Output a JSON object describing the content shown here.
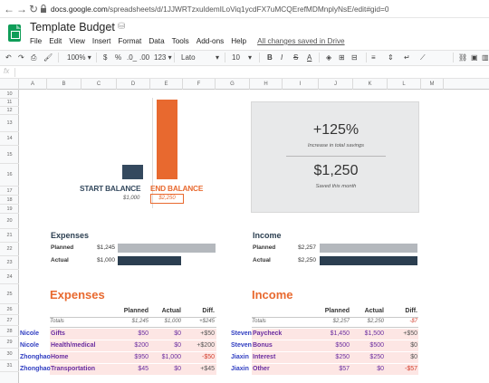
{
  "browser": {
    "url_prefix": "docs.google.com",
    "url_rest": "/spreadsheets/d/1JJWRTzxuldemILoViq1ycdFX7uMCQErefMDMnplyNsE/edit#gid=0"
  },
  "app": {
    "title": "Template Budget",
    "menu": [
      "File",
      "Edit",
      "View",
      "Insert",
      "Format",
      "Data",
      "Tools",
      "Add-ons",
      "Help"
    ],
    "save_status": "All changes saved in Drive"
  },
  "toolbar": {
    "zoom": "100%",
    "currency": "$",
    "percent": "%",
    "dec_less": ".0_",
    "dec_more": ".00",
    "format_more": "123",
    "font": "Lato",
    "font_size": "10",
    "bold": "B",
    "italic": "I",
    "strike": "S",
    "text_color": "A"
  },
  "formula_bar": {
    "label": "fx"
  },
  "columns": [
    "A",
    "B",
    "C",
    "D",
    "E",
    "F",
    "G",
    "H",
    "I",
    "J",
    "K",
    "L",
    "M"
  ],
  "rows": [
    "10",
    "11",
    "12",
    "13",
    "14",
    "15",
    "16",
    "17",
    "18",
    "19",
    "20",
    "21",
    "22",
    "23",
    "24",
    "25",
    "26",
    "27",
    "28",
    "29",
    "30",
    "31"
  ],
  "chart": {
    "start_label": "START BALANCE",
    "end_label": "END BALANCE",
    "start_value": "$1,000",
    "end_value": "$2,250",
    "start_amount": 1000,
    "end_amount": 2250
  },
  "stats": {
    "increase": "+125%",
    "increase_caption": "Increase in total savings",
    "saved": "$1,250",
    "saved_caption": "Saved this month"
  },
  "summary": {
    "expenses": {
      "title": "Expenses",
      "planned_label": "Planned",
      "planned_value": "$1,245",
      "actual_label": "Actual",
      "actual_value": "$1,000",
      "planned_amount": 1245,
      "actual_amount": 1000
    },
    "income": {
      "title": "Income",
      "planned_label": "Planned",
      "planned_value": "$2,257",
      "actual_label": "Actual",
      "actual_value": "$2,250",
      "planned_amount": 2257,
      "actual_amount": 2250
    }
  },
  "expenses_table": {
    "title": "Expenses",
    "headers": [
      "Planned",
      "Actual",
      "Diff."
    ],
    "totals_label": "Totals",
    "totals": [
      "$1,245",
      "$1,000",
      "+$245"
    ],
    "rows": [
      {
        "owner": "Nicole",
        "category": "Gifts",
        "planned": "$50",
        "actual": "$0",
        "diff": "+$50"
      },
      {
        "owner": "Nicole",
        "category": "Health/medical",
        "planned": "$200",
        "actual": "$0",
        "diff": "+$200"
      },
      {
        "owner": "Zhonghao",
        "category": "Home",
        "planned": "$950",
        "actual": "$1,000",
        "diff": "-$50"
      },
      {
        "owner": "Zhonghao",
        "category": "Transportation",
        "planned": "$45",
        "actual": "$0",
        "diff": "+$45"
      }
    ]
  },
  "income_table": {
    "title": "Income",
    "headers": [
      "Planned",
      "Actual",
      "Diff."
    ],
    "totals_label": "Totals",
    "totals": [
      "$2,257",
      "$2,250",
      "-$7"
    ],
    "rows": [
      {
        "owner": "Steven",
        "category": "Paycheck",
        "planned": "$1,450",
        "actual": "$1,500",
        "diff": "+$50"
      },
      {
        "owner": "Steven",
        "category": "Bonus",
        "planned": "$500",
        "actual": "$500",
        "diff": "$0"
      },
      {
        "owner": "Jiaxin",
        "category": "Interest",
        "planned": "$250",
        "actual": "$250",
        "diff": "$0"
      },
      {
        "owner": "Jiaxin",
        "category": "Other",
        "planned": "$57",
        "actual": "$0",
        "diff": "-$57"
      }
    ]
  },
  "colors": {
    "start_bar": "#34495e",
    "end_bar": "#e8692f",
    "planned_bar": "#b4b8bd",
    "actual_bar": "#2b3e50",
    "row_highlight": "#fde6e4",
    "category_text": "#6a2da0",
    "owner_text": "#2f3dc1",
    "negative": "#d23d2b"
  }
}
